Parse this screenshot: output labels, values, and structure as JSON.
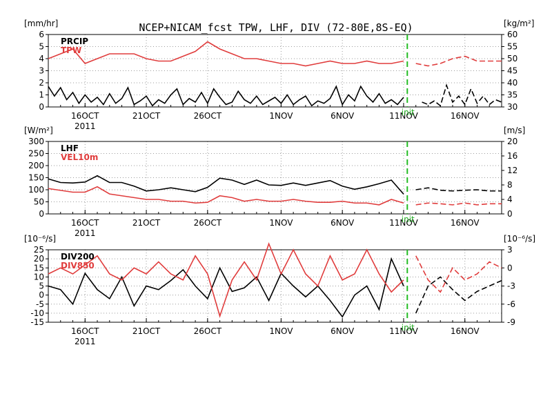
{
  "title": "NCEP+NICAM_fcst TPW, LHF, DIV (72-80E,8S-EQ)",
  "colors": {
    "black": "#000000",
    "red": "#e03c3c",
    "init": "#22bb22",
    "grid": "#9a9a9a"
  },
  "init_label": "init",
  "date_labels": [
    {
      "day": 16,
      "text": "16OCT",
      "sub": "2011"
    },
    {
      "day": 21,
      "text": "21OCT"
    },
    {
      "day": 26,
      "text": "26OCT"
    },
    {
      "day": 32,
      "text": "1NOV"
    },
    {
      "day": 37,
      "text": "6NOV"
    },
    {
      "day": 42,
      "text": "11NOV"
    },
    {
      "day": 47,
      "text": "16NOV"
    }
  ],
  "chart_data": [
    {
      "type": "line",
      "xlabel": "",
      "xlim": [
        13,
        50
      ],
      "init_day": 42.3,
      "left_axis": {
        "unit": "[mm/hr]",
        "ylim": [
          0,
          6
        ],
        "ticks": [
          0,
          1,
          2,
          3,
          4,
          5,
          6
        ]
      },
      "right_axis": {
        "unit": "[kg/m²]",
        "ylim": [
          30,
          60
        ],
        "ticks": [
          30,
          35,
          40,
          45,
          50,
          55,
          60
        ]
      },
      "series": [
        {
          "name": "PRCIP",
          "axis": "left",
          "color": "black",
          "x": [
            13,
            13.5,
            14,
            14.5,
            15,
            15.5,
            16,
            16.5,
            17,
            17.5,
            18,
            18.5,
            19,
            19.5,
            20,
            20.5,
            21,
            21.5,
            22,
            22.5,
            23,
            23.5,
            24,
            24.5,
            25,
            25.5,
            26,
            26.5,
            27,
            27.5,
            28,
            28.5,
            29,
            29.5,
            30,
            30.5,
            31,
            31.5,
            32,
            32.5,
            33,
            33.5,
            34,
            34.5,
            35,
            35.5,
            36,
            36.5,
            37,
            37.5,
            38,
            38.5,
            39,
            39.5,
            40,
            40.5,
            41,
            41.5,
            42,
            42.5,
            43,
            43.5,
            44,
            44.5,
            45,
            45.5,
            46,
            46.5,
            47,
            47.5,
            48,
            48.5,
            49,
            49.5,
            50
          ],
          "values": [
            1.7,
            0.9,
            1.6,
            0.6,
            1.2,
            0.3,
            1.0,
            0.4,
            0.8,
            0.2,
            1.1,
            0.3,
            0.7,
            1.6,
            0.2,
            0.5,
            0.9,
            0.1,
            0.6,
            0.3,
            1.0,
            1.5,
            0.2,
            0.7,
            0.4,
            1.2,
            0.3,
            1.5,
            0.8,
            0.2,
            0.4,
            1.3,
            0.6,
            0.3,
            0.9,
            0.2,
            0.5,
            0.8,
            0.3,
            1.0,
            0.2,
            0.6,
            0.9,
            0.1,
            0.5,
            0.3,
            0.7,
            1.7,
            0.2,
            1.0,
            0.5,
            1.7,
            0.9,
            0.4,
            1.1,
            0.3,
            0.6,
            0.2,
            0.8,
            0.5,
            null,
            0.4,
            0.2,
            0.5,
            0.1,
            1.8,
            0.4,
            0.9,
            0.2,
            1.5,
            0.3,
            0.9,
            0.2,
            0.6,
            0.4
          ]
        },
        {
          "name": "TPW",
          "axis": "right",
          "color": "red",
          "x": [
            13,
            14,
            15,
            16,
            17,
            18,
            19,
            20,
            21,
            22,
            23,
            24,
            25,
            26,
            27,
            28,
            29,
            30,
            31,
            32,
            33,
            34,
            35,
            36,
            37,
            38,
            39,
            40,
            41,
            42,
            43,
            44,
            45,
            46,
            47,
            48,
            49,
            50
          ],
          "values": [
            50,
            52,
            54,
            48,
            50,
            52,
            52,
            52,
            50,
            49,
            49,
            51,
            53,
            57,
            54,
            52,
            50,
            50,
            49,
            48,
            48,
            47,
            48,
            49,
            48,
            48,
            49,
            48,
            48,
            49,
            48,
            47,
            48,
            50,
            51,
            49,
            49,
            49
          ]
        }
      ]
    },
    {
      "type": "line",
      "xlabel": "",
      "xlim": [
        13,
        50
      ],
      "init_day": 42.3,
      "left_axis": {
        "unit": "[W/m²]",
        "ylim": [
          0,
          300
        ],
        "ticks": [
          0,
          50,
          100,
          150,
          200,
          250,
          300
        ]
      },
      "right_axis": {
        "unit": "[m/s]",
        "ylim": [
          0,
          20
        ],
        "ticks": [
          0,
          4,
          8,
          12,
          16,
          20
        ]
      },
      "series": [
        {
          "name": "LHF",
          "axis": "left",
          "color": "black",
          "x": [
            13,
            14,
            15,
            16,
            17,
            18,
            19,
            20,
            21,
            22,
            23,
            24,
            25,
            26,
            27,
            28,
            29,
            30,
            31,
            32,
            33,
            34,
            35,
            36,
            37,
            38,
            39,
            40,
            41,
            42,
            43,
            44,
            45,
            46,
            47,
            48,
            49,
            50
          ],
          "values": [
            145,
            130,
            128,
            132,
            158,
            130,
            130,
            115,
            95,
            100,
            108,
            100,
            92,
            110,
            148,
            140,
            122,
            140,
            120,
            118,
            128,
            118,
            128,
            138,
            115,
            102,
            112,
            125,
            140,
            82,
            100,
            108,
            98,
            95,
            98,
            100,
            95,
            95
          ]
        },
        {
          "name": "VEL10m",
          "axis": "right",
          "color": "red",
          "x": [
            13,
            14,
            15,
            16,
            17,
            18,
            19,
            20,
            21,
            22,
            23,
            24,
            25,
            26,
            27,
            28,
            29,
            30,
            31,
            32,
            33,
            34,
            35,
            36,
            37,
            38,
            39,
            40,
            41,
            42,
            43,
            44,
            45,
            46,
            47,
            48,
            49,
            50
          ],
          "values": [
            7,
            6.5,
            6,
            6,
            7.5,
            5.5,
            5,
            4.5,
            4,
            4,
            3.5,
            3.5,
            3,
            3.2,
            5,
            4.5,
            3.5,
            4,
            3.5,
            3.5,
            4,
            3.5,
            3.2,
            3.2,
            3.5,
            3,
            3,
            2.5,
            4,
            3,
            2.5,
            3,
            2.8,
            2.5,
            3,
            2.5,
            2.8,
            2.8
          ]
        }
      ]
    },
    {
      "type": "line",
      "xlabel": "",
      "xlim": [
        13,
        50
      ],
      "init_day": 42.3,
      "left_axis": {
        "unit": "[10⁻⁶/s]",
        "ylim": [
          -15,
          25
        ],
        "ticks": [
          -15,
          -10,
          -5,
          0,
          5,
          10,
          15,
          20,
          25
        ]
      },
      "right_axis": {
        "unit": "[10⁻⁶/s]",
        "ylim": [
          -9,
          3
        ],
        "ticks": [
          -9,
          -6,
          -3,
          0,
          3
        ]
      },
      "series": [
        {
          "name": "DIV200",
          "axis": "left",
          "color": "black",
          "x": [
            13,
            14,
            15,
            16,
            17,
            18,
            19,
            20,
            21,
            22,
            23,
            24,
            25,
            26,
            27,
            28,
            29,
            30,
            31,
            32,
            33,
            34,
            35,
            36,
            37,
            38,
            39,
            40,
            41,
            42,
            43,
            44,
            45,
            46,
            47,
            48,
            49,
            50
          ],
          "values": [
            5,
            3,
            -5,
            12,
            3,
            -2,
            10,
            -6,
            5,
            3,
            8,
            14,
            5,
            -2,
            15,
            2,
            4,
            10,
            -3,
            12,
            5,
            -1,
            5,
            -3,
            -12,
            0,
            5,
            -8,
            20,
            5,
            -10,
            5,
            10,
            3,
            -3,
            2,
            5,
            8
          ]
        },
        {
          "name": "DIV850",
          "axis": "right",
          "color": "red",
          "x": [
            13,
            14,
            15,
            16,
            17,
            18,
            19,
            20,
            21,
            22,
            23,
            24,
            25,
            26,
            27,
            28,
            29,
            30,
            31,
            32,
            33,
            34,
            35,
            36,
            37,
            38,
            39,
            40,
            41,
            42,
            43,
            44,
            45,
            46,
            47,
            48,
            49,
            50
          ],
          "values": [
            -1,
            0,
            -1,
            0.5,
            2,
            -1,
            -2,
            0,
            -1,
            1,
            -1,
            -2,
            2,
            -1,
            -8,
            -2,
            1,
            -2,
            4,
            -1,
            3,
            -1,
            -3,
            2,
            -2,
            -1,
            3,
            -1,
            -4,
            -2,
            2,
            -2,
            -4,
            0,
            -2,
            -1,
            1,
            0
          ]
        }
      ]
    }
  ]
}
